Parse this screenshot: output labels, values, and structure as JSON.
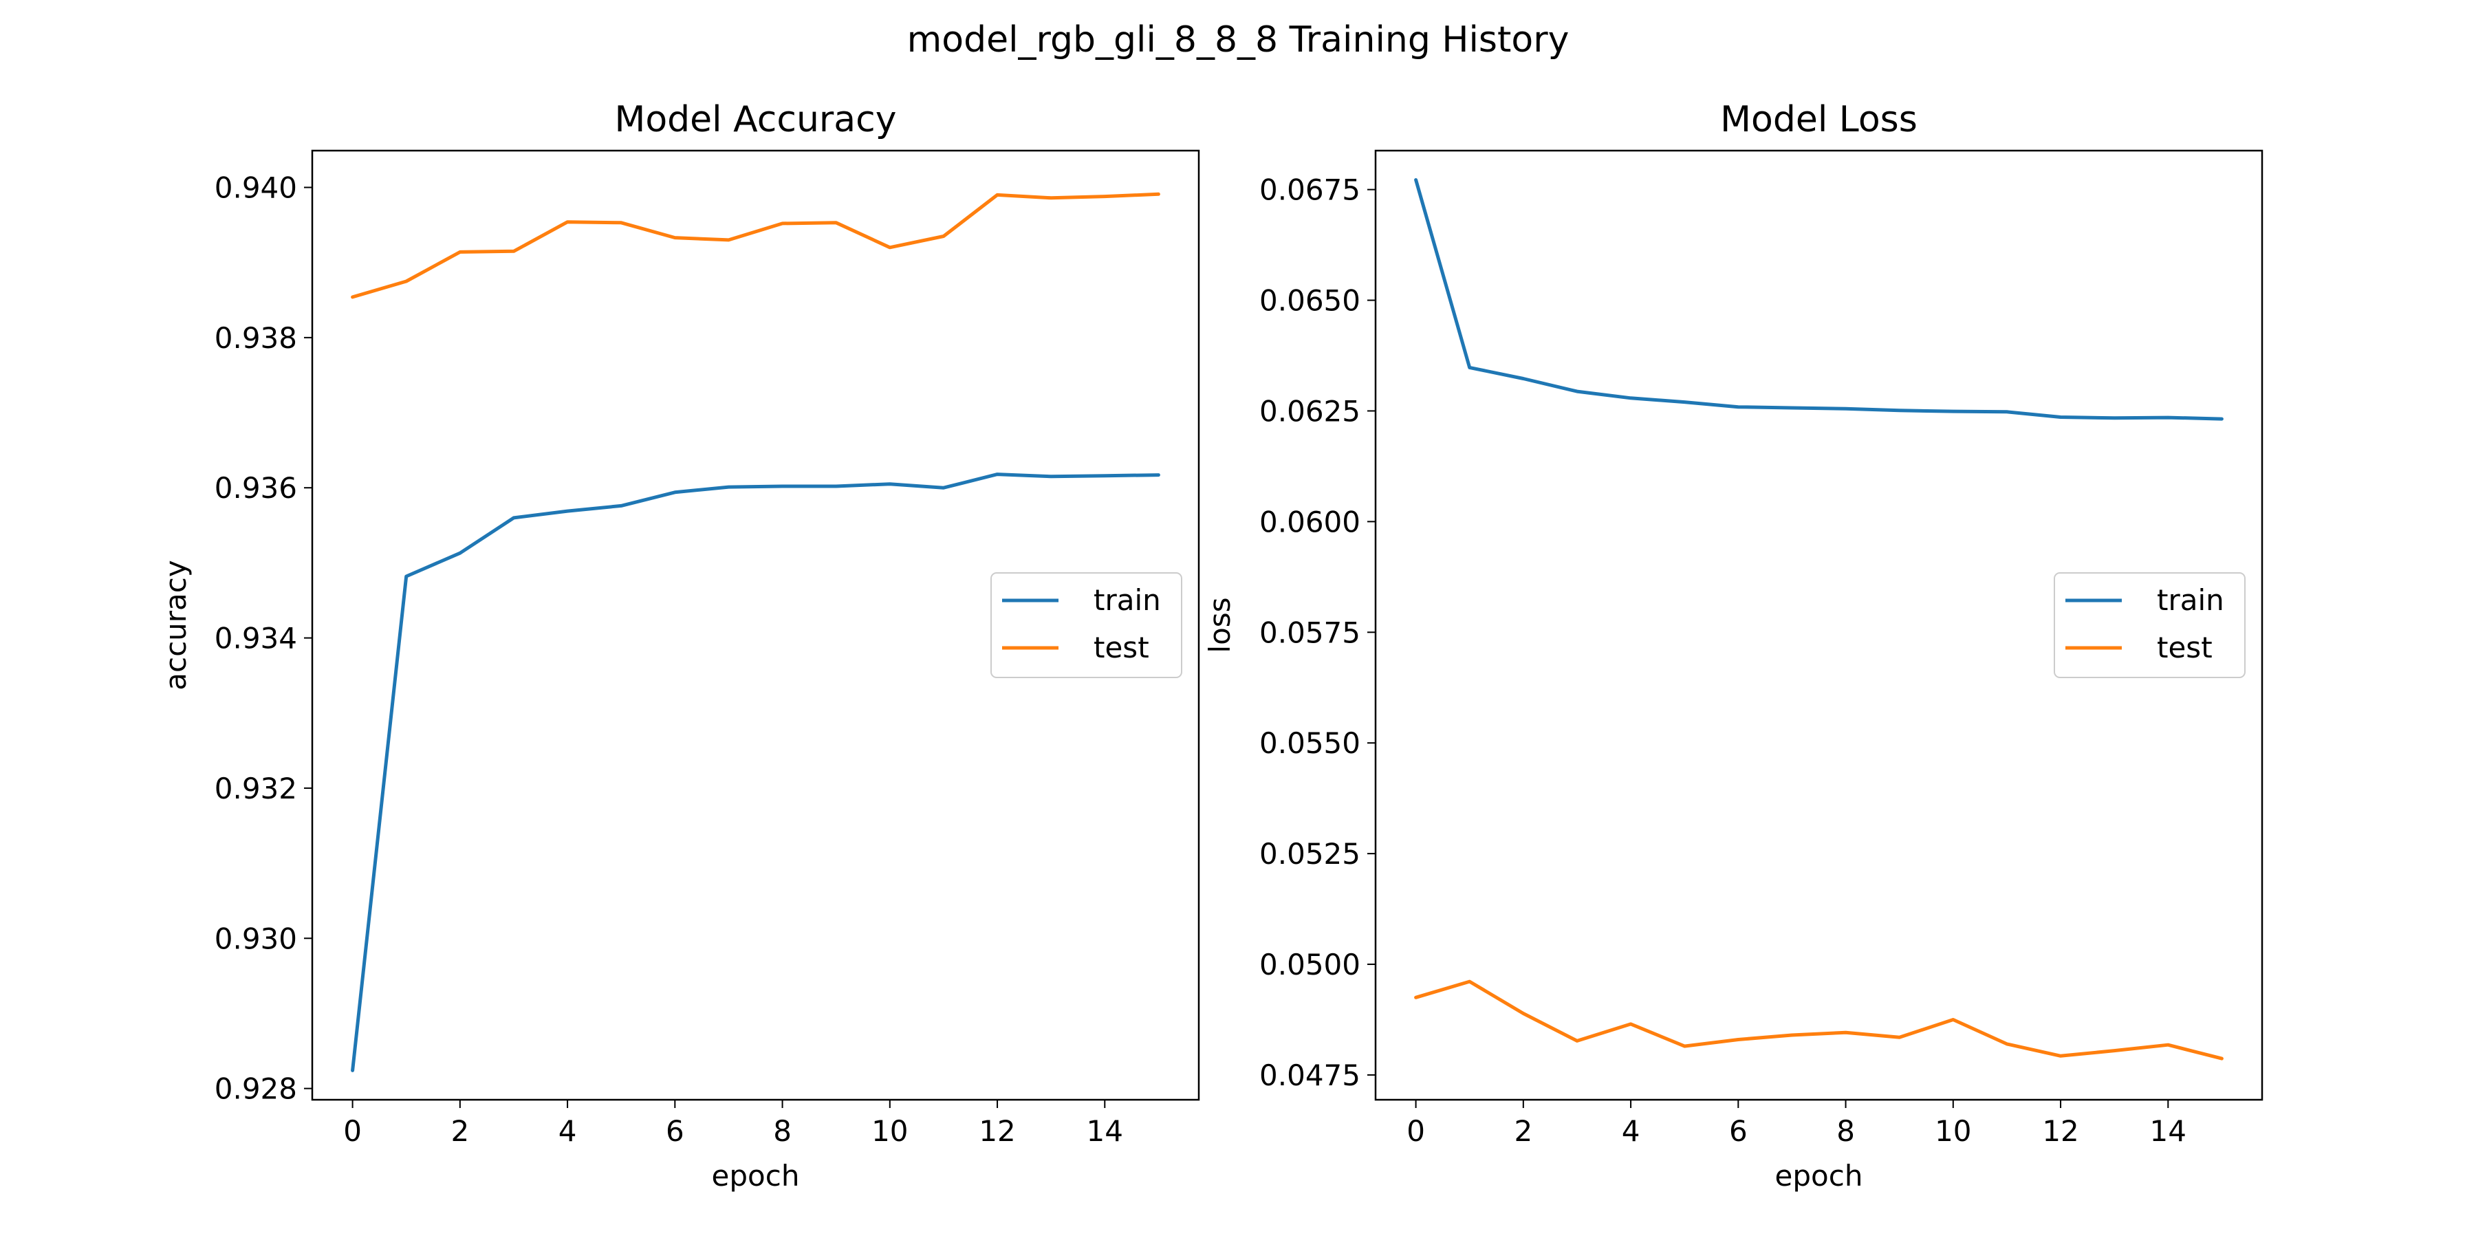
{
  "figure": {
    "title": "model_rgb_gli_8_8_8 Training History"
  },
  "chart_data": [
    {
      "type": "line",
      "title": "Model Accuracy",
      "xlabel": "epoch",
      "ylabel": "accuracy",
      "x": [
        0,
        1,
        2,
        3,
        4,
        5,
        6,
        7,
        8,
        9,
        10,
        11,
        12,
        13,
        14,
        15
      ],
      "xlim": [
        -0.75,
        15.75
      ],
      "ylim": [
        0.92785,
        0.94049
      ],
      "xticks": [
        0,
        2,
        4,
        6,
        8,
        10,
        12,
        14
      ],
      "xtick_labels": [
        "0",
        "2",
        "4",
        "6",
        "8",
        "10",
        "12",
        "14"
      ],
      "yticks": [
        0.928,
        0.93,
        0.932,
        0.934,
        0.936,
        0.938,
        0.94
      ],
      "ytick_labels": [
        "0.928",
        "0.930",
        "0.932",
        "0.934",
        "0.936",
        "0.938",
        "0.940"
      ],
      "grid": false,
      "legend": "center right",
      "series": [
        {
          "name": "train",
          "color": "#1f77b4",
          "values": [
            0.92824,
            0.93482,
            0.93513,
            0.9356,
            0.93569,
            0.93576,
            0.93594,
            0.93601,
            0.93602,
            0.93602,
            0.93605,
            0.936,
            0.93618,
            0.93615,
            0.93616,
            0.93617
          ]
        },
        {
          "name": "test",
          "color": "#ff7f0e",
          "values": [
            0.93854,
            0.93875,
            0.93914,
            0.93915,
            0.93954,
            0.93953,
            0.93933,
            0.9393,
            0.93952,
            0.93953,
            0.9392,
            0.93935,
            0.9399,
            0.93986,
            0.93988,
            0.93991
          ]
        }
      ]
    },
    {
      "type": "line",
      "title": "Model Loss",
      "xlabel": "epoch",
      "ylabel": "loss",
      "x": [
        0,
        1,
        2,
        3,
        4,
        5,
        6,
        7,
        8,
        9,
        10,
        11,
        12,
        13,
        14,
        15
      ],
      "xlim": [
        -0.75,
        15.75
      ],
      "ylim": [
        0.04694,
        0.06838
      ],
      "xticks": [
        0,
        2,
        4,
        6,
        8,
        10,
        12,
        14
      ],
      "xtick_labels": [
        "0",
        "2",
        "4",
        "6",
        "8",
        "10",
        "12",
        "14"
      ],
      "yticks": [
        0.0475,
        0.05,
        0.0525,
        0.055,
        0.0575,
        0.06,
        0.0625,
        0.065,
        0.0675
      ],
      "ytick_labels": [
        "0.0475",
        "0.0500",
        "0.0525",
        "0.0550",
        "0.0575",
        "0.0600",
        "0.0625",
        "0.0650",
        "0.0675"
      ],
      "grid": false,
      "legend": "center right",
      "series": [
        {
          "name": "train",
          "color": "#1f77b4",
          "values": [
            0.06772,
            0.06348,
            0.06323,
            0.06294,
            0.06279,
            0.0627,
            0.06259,
            0.06257,
            0.06255,
            0.06251,
            0.06249,
            0.06248,
            0.06236,
            0.06234,
            0.06235,
            0.06232
          ]
        },
        {
          "name": "test",
          "color": "#ff7f0e",
          "values": [
            0.04925,
            0.04961,
            0.04889,
            0.04827,
            0.04865,
            0.04815,
            0.0483,
            0.0484,
            0.04846,
            0.04835,
            0.04875,
            0.0482,
            0.04793,
            0.04805,
            0.04818,
            0.04787
          ]
        }
      ]
    }
  ]
}
